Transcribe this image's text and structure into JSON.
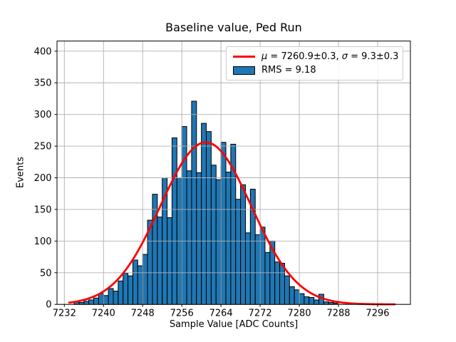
{
  "chart_data": {
    "type": "histogram",
    "title": "Baseline value, Ped Run",
    "xlabel": "Sample Value [ADC Counts]",
    "ylabel": "Events",
    "bin_start": 7234,
    "bin_width": 1,
    "counts": [
      4,
      3,
      5,
      7,
      10,
      17,
      14,
      25,
      21,
      37,
      49,
      45,
      70,
      61,
      79,
      133,
      174,
      138,
      200,
      137,
      263,
      200,
      281,
      211,
      321,
      208,
      286,
      273,
      220,
      197,
      256,
      209,
      253,
      166,
      189,
      113,
      182,
      110,
      122,
      82,
      100,
      67,
      65,
      45,
      28,
      23,
      17,
      12,
      11,
      7,
      16,
      4,
      3,
      2
    ],
    "fit": {
      "type": "gaussian",
      "mu": 7260.9,
      "mu_err": 0.3,
      "sigma": 9.3,
      "sigma_err": 0.3,
      "amplitude": 256,
      "x_start": 7233,
      "x_end": 7299.5
    },
    "rms": 9.18,
    "xlim": [
      7230.5,
      7302.7
    ],
    "ylim": [
      0,
      416
    ],
    "xticks": [
      7232,
      7240,
      7248,
      7256,
      7264,
      7272,
      7280,
      7288,
      7296
    ],
    "yticks": [
      0,
      50,
      100,
      150,
      200,
      250,
      300,
      350,
      400
    ],
    "grid": true,
    "legend_position": "upper right"
  },
  "legend": {
    "fit_label_parts": [
      {
        "text": "μ",
        "italic": true
      },
      {
        "text": " = 7260.9±0.3, ",
        "italic": false
      },
      {
        "text": "σ",
        "italic": true
      },
      {
        "text": " = 9.3±0.3",
        "italic": false
      }
    ],
    "fit_label_full": "μ = 7260.9±0.3, σ = 9.3±0.3",
    "rms_label": "RMS = 9.18"
  },
  "colors": {
    "bar_fill": "#1f77b4",
    "bar_edge": "#000000",
    "fit_line": "#ff0000",
    "grid": "#b0b0b0",
    "spine": "#000000",
    "background": "#ffffff",
    "legend_border": "#cccccc",
    "text": "#000000"
  }
}
